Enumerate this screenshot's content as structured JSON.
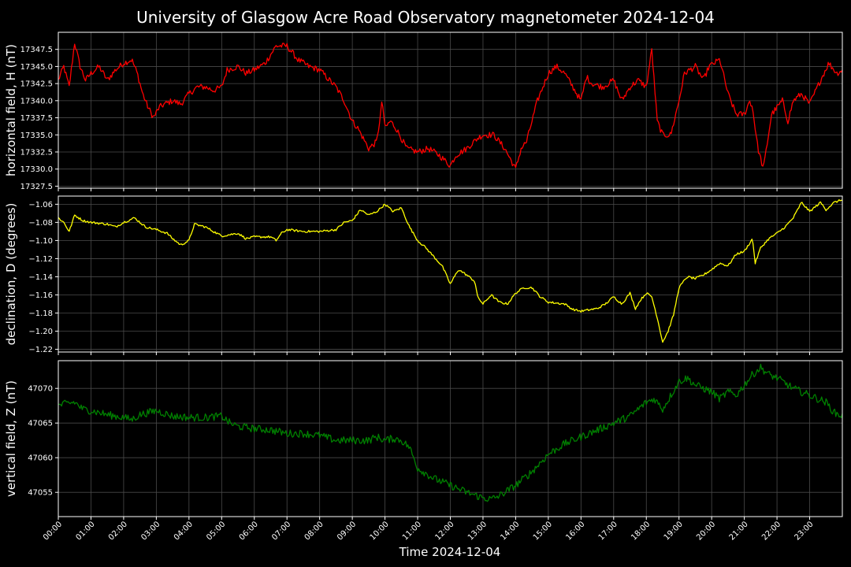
{
  "chart_data": {
    "type": "line",
    "title": "University of Glasgow Acre Road Observatory magnetometer 2024-12-04",
    "xlabel": "Time 2024-12-04",
    "x_ticks": [
      "00:00",
      "01:00",
      "02:00",
      "03:00",
      "04:00",
      "05:00",
      "06:00",
      "07:00",
      "08:00",
      "09:00",
      "10:00",
      "11:00",
      "12:00",
      "13:00",
      "14:00",
      "15:00",
      "16:00",
      "17:00",
      "18:00",
      "19:00",
      "20:00",
      "21:00",
      "22:00",
      "23:00"
    ],
    "xlim": [
      "00:00",
      "24:00"
    ],
    "grid": true,
    "panels": [
      {
        "ylabel": "horizontal field, H (nT)",
        "color": "#ff0000",
        "ylim": [
          17327.2,
          17350.0
        ],
        "y_ticks": [
          "17327.5",
          "17330.0",
          "17332.5",
          "17335.0",
          "17337.5",
          "17340.0",
          "17342.5",
          "17345.0",
          "17347.5"
        ],
        "y_tick_values": [
          17327.5,
          17330.0,
          17332.5,
          17335.0,
          17337.5,
          17340.0,
          17342.5,
          17345.0,
          17347.5
        ],
        "noise": 0.45,
        "points": [
          [
            "00:00",
            17343
          ],
          [
            "00:10",
            17345
          ],
          [
            "00:20",
            17342
          ],
          [
            "00:30",
            17348.5
          ],
          [
            "00:40",
            17345
          ],
          [
            "00:50",
            17343
          ],
          [
            "01:00",
            17344
          ],
          [
            "01:15",
            17345
          ],
          [
            "01:30",
            17343
          ],
          [
            "01:45",
            17344.5
          ],
          [
            "02:00",
            17345.5
          ],
          [
            "02:15",
            17346
          ],
          [
            "02:25",
            17344
          ],
          [
            "02:35",
            17341
          ],
          [
            "02:45",
            17339
          ],
          [
            "02:55",
            17337.5
          ],
          [
            "03:05",
            17339
          ],
          [
            "03:15",
            17339.5
          ],
          [
            "03:30",
            17340
          ],
          [
            "03:45",
            17339.5
          ],
          [
            "04:00",
            17341
          ],
          [
            "04:15",
            17342
          ],
          [
            "04:30",
            17342
          ],
          [
            "04:45",
            17341.5
          ],
          [
            "05:00",
            17342
          ],
          [
            "05:10",
            17344.5
          ],
          [
            "05:30",
            17345
          ],
          [
            "05:45",
            17344
          ],
          [
            "06:00",
            17344.5
          ],
          [
            "06:20",
            17345.5
          ],
          [
            "06:40",
            17348
          ],
          [
            "07:00",
            17348
          ],
          [
            "07:20",
            17346
          ],
          [
            "07:40",
            17345
          ],
          [
            "08:00",
            17344.5
          ],
          [
            "08:30",
            17342
          ],
          [
            "08:45",
            17340
          ],
          [
            "09:00",
            17337
          ],
          [
            "09:10",
            17336
          ],
          [
            "09:30",
            17333
          ],
          [
            "09:45",
            17334
          ],
          [
            "09:55",
            17340
          ],
          [
            "10:00",
            17336
          ],
          [
            "10:10",
            17337
          ],
          [
            "10:20",
            17336
          ],
          [
            "10:40",
            17333
          ],
          [
            "11:00",
            17332.5
          ],
          [
            "11:20",
            17333
          ],
          [
            "11:40",
            17332
          ],
          [
            "12:00",
            17330.5
          ],
          [
            "12:10",
            17332
          ],
          [
            "12:30",
            17333
          ],
          [
            "12:50",
            17334.5
          ],
          [
            "13:00",
            17335
          ],
          [
            "13:20",
            17335
          ],
          [
            "13:40",
            17333
          ],
          [
            "14:00",
            17330
          ],
          [
            "14:10",
            17333
          ],
          [
            "14:20",
            17334
          ],
          [
            "14:40",
            17340
          ],
          [
            "15:00",
            17344
          ],
          [
            "15:15",
            17345
          ],
          [
            "15:30",
            17344
          ],
          [
            "15:45",
            17342
          ],
          [
            "16:00",
            17340
          ],
          [
            "16:10",
            17343.5
          ],
          [
            "16:20",
            17342.5
          ],
          [
            "16:40",
            17342
          ],
          [
            "17:00",
            17343
          ],
          [
            "17:15",
            17340
          ],
          [
            "17:30",
            17342
          ],
          [
            "17:45",
            17343
          ],
          [
            "18:00",
            17342
          ],
          [
            "18:10",
            17347.5
          ],
          [
            "18:20",
            17337
          ],
          [
            "18:30",
            17335
          ],
          [
            "18:45",
            17335
          ],
          [
            "19:00",
            17340
          ],
          [
            "19:10",
            17344
          ],
          [
            "19:30",
            17345
          ],
          [
            "19:45",
            17343
          ],
          [
            "19:55",
            17345
          ],
          [
            "20:15",
            17346
          ],
          [
            "20:30",
            17341
          ],
          [
            "20:45",
            17338
          ],
          [
            "21:00",
            17338
          ],
          [
            "21:10",
            17340
          ],
          [
            "21:15",
            17339
          ],
          [
            "21:25",
            17333
          ],
          [
            "21:35",
            17330
          ],
          [
            "21:50",
            17338
          ],
          [
            "22:10",
            17340
          ],
          [
            "22:20",
            17337
          ],
          [
            "22:30",
            17340
          ],
          [
            "22:45",
            17341
          ],
          [
            "23:00",
            17339.5
          ],
          [
            "23:20",
            17343
          ],
          [
            "23:35",
            17345.5
          ],
          [
            "23:50",
            17344
          ],
          [
            "24:00",
            17344.5
          ]
        ]
      },
      {
        "ylabel": "declination, D (degrees)",
        "color": "#ffff00",
        "ylim": [
          -1.223,
          -1.051
        ],
        "y_ticks": [
          "−1.22",
          "−1.20",
          "−1.18",
          "−1.16",
          "−1.14",
          "−1.12",
          "−1.10",
          "−1.08",
          "−1.06"
        ],
        "y_tick_values": [
          -1.22,
          -1.2,
          -1.18,
          -1.16,
          -1.14,
          -1.12,
          -1.1,
          -1.08,
          -1.06
        ],
        "noise": 0.0012,
        "points": [
          [
            "00:00",
            -1.075
          ],
          [
            "00:10",
            -1.08
          ],
          [
            "00:20",
            -1.09
          ],
          [
            "00:30",
            -1.072
          ],
          [
            "00:45",
            -1.078
          ],
          [
            "01:00",
            -1.08
          ],
          [
            "01:30",
            -1.082
          ],
          [
            "01:45",
            -1.085
          ],
          [
            "02:00",
            -1.08
          ],
          [
            "02:20",
            -1.075
          ],
          [
            "02:40",
            -1.085
          ],
          [
            "03:00",
            -1.088
          ],
          [
            "03:20",
            -1.092
          ],
          [
            "03:30",
            -1.098
          ],
          [
            "03:45",
            -1.105
          ],
          [
            "04:00",
            -1.1
          ],
          [
            "04:10",
            -1.082
          ],
          [
            "04:30",
            -1.085
          ],
          [
            "04:45",
            -1.09
          ],
          [
            "05:00",
            -1.095
          ],
          [
            "05:30",
            -1.092
          ],
          [
            "05:45",
            -1.098
          ],
          [
            "06:00",
            -1.096
          ],
          [
            "06:30",
            -1.096
          ],
          [
            "06:40",
            -1.1
          ],
          [
            "06:50",
            -1.092
          ],
          [
            "07:00",
            -1.088
          ],
          [
            "07:30",
            -1.09
          ],
          [
            "08:00",
            -1.09
          ],
          [
            "08:30",
            -1.088
          ],
          [
            "08:45",
            -1.08
          ],
          [
            "09:00",
            -1.078
          ],
          [
            "09:15",
            -1.066
          ],
          [
            "09:30",
            -1.072
          ],
          [
            "09:45",
            -1.068
          ],
          [
            "10:00",
            -1.06
          ],
          [
            "10:15",
            -1.068
          ],
          [
            "10:30",
            -1.064
          ],
          [
            "10:45",
            -1.085
          ],
          [
            "11:00",
            -1.1
          ],
          [
            "11:15",
            -1.108
          ],
          [
            "11:30",
            -1.118
          ],
          [
            "11:45",
            -1.128
          ],
          [
            "12:00",
            -1.148
          ],
          [
            "12:15",
            -1.132
          ],
          [
            "12:30",
            -1.138
          ],
          [
            "12:45",
            -1.145
          ],
          [
            "12:50",
            -1.162
          ],
          [
            "13:00",
            -1.17
          ],
          [
            "13:15",
            -1.16
          ],
          [
            "13:30",
            -1.168
          ],
          [
            "13:45",
            -1.17
          ],
          [
            "14:00",
            -1.158
          ],
          [
            "14:15",
            -1.152
          ],
          [
            "14:30",
            -1.152
          ],
          [
            "14:45",
            -1.162
          ],
          [
            "15:00",
            -1.168
          ],
          [
            "15:30",
            -1.17
          ],
          [
            "15:45",
            -1.176
          ],
          [
            "16:00",
            -1.178
          ],
          [
            "16:30",
            -1.175
          ],
          [
            "16:45",
            -1.17
          ],
          [
            "17:00",
            -1.162
          ],
          [
            "17:15",
            -1.17
          ],
          [
            "17:30",
            -1.158
          ],
          [
            "17:40",
            -1.175
          ],
          [
            "17:50",
            -1.165
          ],
          [
            "18:00",
            -1.158
          ],
          [
            "18:10",
            -1.162
          ],
          [
            "18:20",
            -1.185
          ],
          [
            "18:30",
            -1.212
          ],
          [
            "18:40",
            -1.2
          ],
          [
            "18:50",
            -1.182
          ],
          [
            "19:00",
            -1.152
          ],
          [
            "19:15",
            -1.14
          ],
          [
            "19:30",
            -1.142
          ],
          [
            "19:45",
            -1.138
          ],
          [
            "20:00",
            -1.132
          ],
          [
            "20:15",
            -1.125
          ],
          [
            "20:30",
            -1.128
          ],
          [
            "20:45",
            -1.115
          ],
          [
            "21:00",
            -1.112
          ],
          [
            "21:15",
            -1.098
          ],
          [
            "21:20",
            -1.125
          ],
          [
            "21:30",
            -1.108
          ],
          [
            "21:45",
            -1.098
          ],
          [
            "22:00",
            -1.092
          ],
          [
            "22:15",
            -1.085
          ],
          [
            "22:30",
            -1.075
          ],
          [
            "22:45",
            -1.058
          ],
          [
            "23:00",
            -1.068
          ],
          [
            "23:20",
            -1.058
          ],
          [
            "23:30",
            -1.066
          ],
          [
            "23:45",
            -1.058
          ],
          [
            "24:00",
            -1.055
          ]
        ]
      },
      {
        "ylabel": "vertical field, Z (nT)",
        "color": "#008000",
        "ylim": [
          47051.5,
          47074.0
        ],
        "y_ticks": [
          "47055",
          "47060",
          "47065",
          "47070"
        ],
        "y_tick_values": [
          47055,
          47060,
          47065,
          47070
        ],
        "noise": 0.55,
        "points": [
          [
            "00:00",
            47067.5
          ],
          [
            "00:15",
            47067.8
          ],
          [
            "00:30",
            47068
          ],
          [
            "00:45",
            47067
          ],
          [
            "01:00",
            47066.8
          ],
          [
            "01:30",
            47066.2
          ],
          [
            "02:00",
            47065.8
          ],
          [
            "02:15",
            47065.5
          ],
          [
            "02:30",
            47066.2
          ],
          [
            "03:00",
            47066.8
          ],
          [
            "03:30",
            47066
          ],
          [
            "04:00",
            47065.8
          ],
          [
            "04:30",
            47065.8
          ],
          [
            "05:00",
            47066
          ],
          [
            "05:15",
            47065
          ],
          [
            "05:30",
            47064.5
          ],
          [
            "06:00",
            47064.2
          ],
          [
            "06:30",
            47064
          ],
          [
            "07:00",
            47063.5
          ],
          [
            "07:30",
            47063.5
          ],
          [
            "08:00",
            47063.2
          ],
          [
            "08:30",
            47062.5
          ],
          [
            "09:00",
            47062.5
          ],
          [
            "09:30",
            47062.5
          ],
          [
            "09:45",
            47063
          ],
          [
            "10:00",
            47062.5
          ],
          [
            "10:15",
            47062.8
          ],
          [
            "10:30",
            47062.5
          ],
          [
            "10:45",
            47061.5
          ],
          [
            "11:00",
            47058.5
          ],
          [
            "11:30",
            47057
          ],
          [
            "12:00",
            47056
          ],
          [
            "12:30",
            47055
          ],
          [
            "13:00",
            47054.2
          ],
          [
            "13:15",
            47054
          ],
          [
            "13:30",
            47054.5
          ],
          [
            "14:00",
            47056
          ],
          [
            "14:30",
            47058
          ],
          [
            "15:00",
            47060.5
          ],
          [
            "15:30",
            47062
          ],
          [
            "16:00",
            47063
          ],
          [
            "16:30",
            47064
          ],
          [
            "17:00",
            47065
          ],
          [
            "17:30",
            47066
          ],
          [
            "18:00",
            47068
          ],
          [
            "18:15",
            47068.5
          ],
          [
            "18:30",
            47067
          ],
          [
            "18:45",
            47069
          ],
          [
            "19:00",
            47071
          ],
          [
            "19:15",
            47071.5
          ],
          [
            "19:30",
            47070.5
          ],
          [
            "20:00",
            47069.5
          ],
          [
            "20:15",
            47068.5
          ],
          [
            "20:30",
            47069.5
          ],
          [
            "20:45",
            47069
          ],
          [
            "21:00",
            47070.5
          ],
          [
            "21:15",
            47072
          ],
          [
            "21:30",
            47073
          ],
          [
            "21:45",
            47072
          ],
          [
            "22:00",
            47071.5
          ],
          [
            "22:30",
            47070
          ],
          [
            "23:00",
            47069
          ],
          [
            "23:15",
            47068.5
          ],
          [
            "23:30",
            47068
          ],
          [
            "23:45",
            47066.5
          ],
          [
            "24:00",
            47066
          ]
        ]
      }
    ]
  }
}
